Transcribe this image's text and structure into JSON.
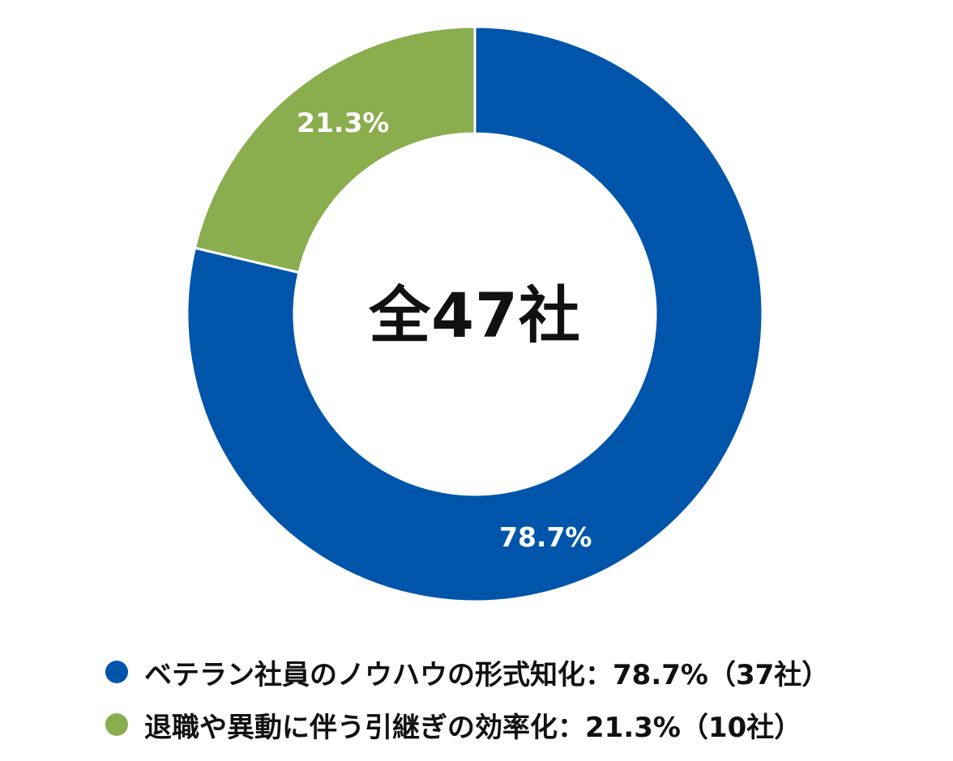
{
  "chart_data": {
    "type": "pie",
    "subtype": "donut",
    "title": "",
    "center_label": "全47社",
    "total": 47,
    "categories": [
      "ベテラン社員のノウハウの形式知化",
      "退職や異動に伴う引継ぎの効率化"
    ],
    "values": [
      78.7,
      21.3
    ],
    "counts": [
      37,
      10
    ],
    "colors": [
      "#0055aa",
      "#8aad4e"
    ],
    "data_labels": [
      "78.7%",
      "21.3%"
    ],
    "legend_position": "bottom"
  },
  "center": {
    "label": "全47社"
  },
  "slices": [
    {
      "label": "78.7%"
    },
    {
      "label": "21.3%"
    }
  ],
  "legend": {
    "items": [
      {
        "text": "ベテラン社員のノウハウの形式知化：78.7%（37社）",
        "color": "#0055aa"
      },
      {
        "text": "退職や異動に伴う引継ぎの効率化：21.3%（10社）",
        "color": "#8aad4e"
      }
    ]
  }
}
